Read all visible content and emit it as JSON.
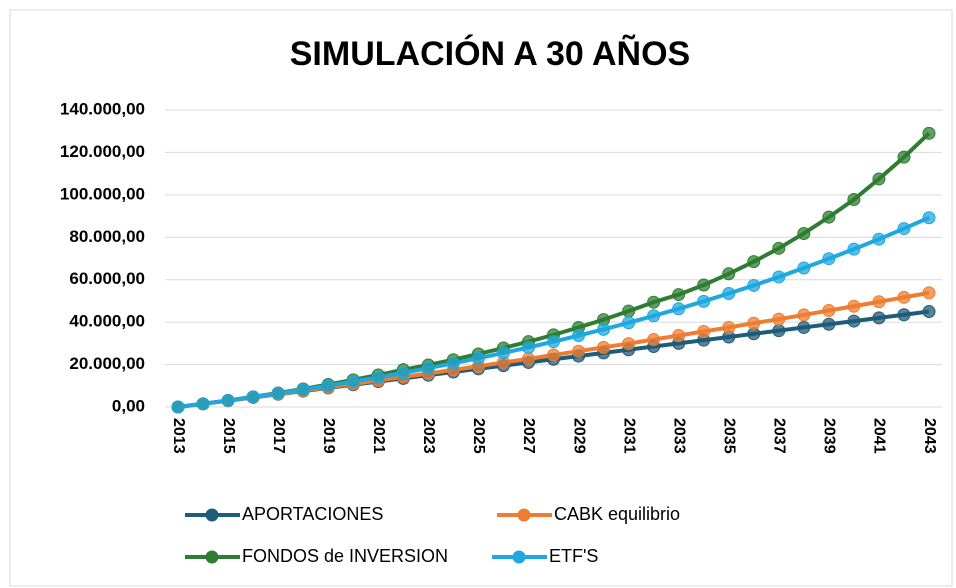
{
  "chart_data": {
    "type": "line",
    "title": "SIMULACIÓN A 30 AÑOS",
    "categories": [
      "2013",
      null,
      "2015",
      null,
      "2017",
      null,
      "2019",
      null,
      "2021",
      null,
      "2023",
      null,
      "2025",
      null,
      "2027",
      null,
      "2029",
      null,
      "2031",
      null,
      "2033",
      null,
      "2035",
      null,
      "2037",
      null,
      "2039",
      null,
      "2041",
      null,
      "2043"
    ],
    "series": [
      {
        "name": "APORTACIONES",
        "color": "#1f5b7a",
        "values": [
          0,
          1500,
          3000,
          4500,
          6000,
          7500,
          9000,
          10500,
          12000,
          13500,
          15000,
          16500,
          18000,
          19500,
          21000,
          22500,
          24000,
          25500,
          27000,
          28500,
          30000,
          31500,
          33000,
          34500,
          36000,
          37500,
          39000,
          40500,
          42000,
          43500,
          45000
        ]
      },
      {
        "name": "CABK equilibrio",
        "color": "#ed7d31",
        "values": [
          0,
          1500,
          3000,
          4600,
          6100,
          7700,
          9300,
          10900,
          12500,
          14200,
          15800,
          17500,
          19200,
          21000,
          22700,
          24500,
          26300,
          28100,
          29900,
          31800,
          33700,
          35600,
          37500,
          39500,
          41400,
          43400,
          45500,
          47500,
          49600,
          51700,
          53800
        ]
      },
      {
        "name": "FONDOS de INVERSION",
        "color": "#2e7d32",
        "values": [
          0,
          1500,
          3100,
          4800,
          6600,
          8500,
          10600,
          12800,
          15100,
          17600,
          19800,
          22300,
          25000,
          27800,
          30800,
          34000,
          37500,
          41200,
          45200,
          49400,
          53000,
          57500,
          62800,
          68500,
          74800,
          81800,
          89500,
          97800,
          107500,
          117800,
          129000
        ]
      },
      {
        "name": "ETF'S",
        "color": "#1fa8e0",
        "values": [
          0,
          1500,
          3100,
          4700,
          6400,
          8200,
          10000,
          12000,
          14000,
          16100,
          18300,
          20600,
          23000,
          25500,
          28100,
          30800,
          33700,
          36600,
          39700,
          43000,
          46300,
          49800,
          53500,
          57300,
          61300,
          65500,
          69900,
          74400,
          79100,
          84100,
          89200
        ]
      }
    ],
    "ylim": [
      0,
      140000
    ],
    "yticks": [
      {
        "value": 0,
        "label": "0,00"
      },
      {
        "value": 20000,
        "label": "20.000,00"
      },
      {
        "value": 40000,
        "label": "40.000,00"
      },
      {
        "value": 60000,
        "label": "60.000,00"
      },
      {
        "value": 80000,
        "label": "80.000,00"
      },
      {
        "value": 100000,
        "label": "100.000,00"
      },
      {
        "value": 120000,
        "label": "120.000,00"
      },
      {
        "value": 140000,
        "label": "140.000,00"
      }
    ],
    "grid": true
  }
}
